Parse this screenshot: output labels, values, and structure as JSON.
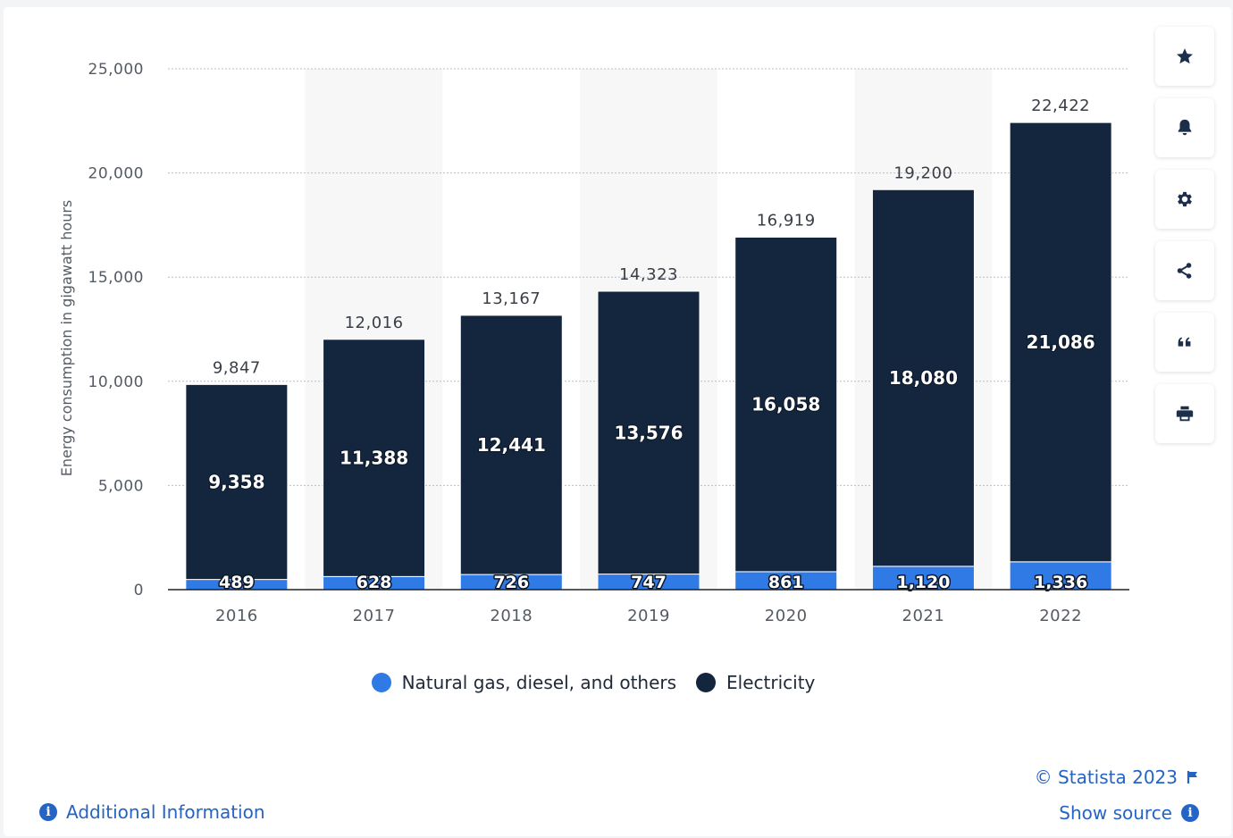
{
  "chart_data": {
    "type": "bar",
    "stacked": true,
    "categories": [
      "2016",
      "2017",
      "2018",
      "2019",
      "2020",
      "2021",
      "2022"
    ],
    "series": [
      {
        "name": "Natural gas, diesel, and others",
        "values": [
          489,
          628,
          726,
          747,
          861,
          1120,
          1336
        ],
        "labels": [
          "489",
          "628",
          "726",
          "747",
          "861",
          "1,120",
          "1,336"
        ],
        "color": "#2f7ae5"
      },
      {
        "name": "Electricity",
        "values": [
          9358,
          11388,
          12441,
          13576,
          16058,
          18080,
          21086
        ],
        "labels": [
          "9,358",
          "11,388",
          "12,441",
          "13,576",
          "16,058",
          "18,080",
          "21,086"
        ],
        "color": "#13263e"
      }
    ],
    "totals": [
      "9,847",
      "12,016",
      "13,167",
      "14,323",
      "16,919",
      "19,200",
      "22,422"
    ],
    "ylabel": "Energy consumption in gigawatt hours",
    "ylim": [
      0,
      25000
    ],
    "yticks": [
      0,
      5000,
      10000,
      15000,
      20000,
      25000
    ],
    "ytick_labels": [
      "0",
      "5,000",
      "10,000",
      "15,000",
      "20,000",
      "25,000"
    ],
    "grid": true,
    "legend_position": "bottom-center"
  },
  "toolbar": {
    "items": [
      {
        "name": "favorite-button",
        "icon": "star-icon"
      },
      {
        "name": "notification-button",
        "icon": "bell-icon"
      },
      {
        "name": "settings-button",
        "icon": "gear-icon"
      },
      {
        "name": "share-button",
        "icon": "share-icon"
      },
      {
        "name": "cite-button",
        "icon": "quote-icon"
      },
      {
        "name": "print-button",
        "icon": "printer-icon"
      }
    ]
  },
  "legend": {
    "items": [
      "Natural gas, diesel, and others",
      "Electricity"
    ]
  },
  "footer": {
    "copyright": "© Statista 2023",
    "show_source": "Show source",
    "additional_info": "Additional Information"
  },
  "colors": {
    "accent": "#2563c4",
    "electricity": "#13263e",
    "natural_gas": "#2f7ae5"
  }
}
